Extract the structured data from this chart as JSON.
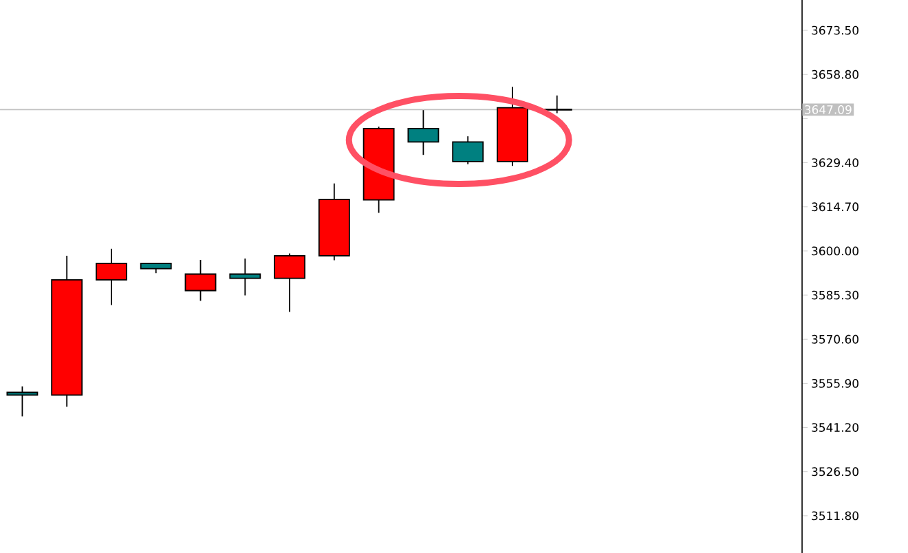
{
  "chart_data": {
    "type": "candlestick",
    "categories": [
      null,
      null,
      null,
      null,
      null,
      null,
      null,
      null,
      null,
      null,
      null,
      null,
      null,
      null,
      null,
      null,
      null,
      null
    ],
    "ohlc": [
      [
        3552.9,
        3554.9,
        3544.9,
        3552.0
      ],
      [
        3552.0,
        3598.4,
        3548.1,
        3590.4
      ],
      [
        3590.4,
        3600.7,
        3582.0,
        3595.9
      ],
      [
        3595.9,
        3595.9,
        3592.6,
        3594.1
      ],
      [
        3586.8,
        3597.0,
        3583.4,
        3592.3
      ],
      [
        3592.3,
        3597.5,
        3585.2,
        3590.9
      ],
      [
        3590.9,
        3599.2,
        3579.7,
        3598.4
      ],
      [
        3598.4,
        3622.5,
        3596.9,
        3617.2
      ],
      [
        3617.0,
        3641.4,
        3612.7,
        3640.8
      ],
      [
        3640.8,
        3646.9,
        3632.0,
        3636.3
      ],
      [
        3636.3,
        3638.2,
        3628.9,
        3629.8
      ],
      [
        3629.8,
        3654.7,
        3628.3,
        3647.7
      ],
      [
        3647.09,
        3651.8,
        3645.9,
        3647.09
      ],
      null,
      null,
      null,
      null,
      null
    ],
    "colors": [
      "#008080",
      "#ff0000",
      "#ff0000",
      "#008080",
      "#ff0000",
      "#008080",
      "#ff0000",
      "#ff0000",
      "#ff0000",
      "#008080",
      "#008080",
      "#ff0000",
      "#000000",
      null,
      null,
      null,
      null,
      null
    ],
    "ylim": [
      3499.4,
      3683.6
    ],
    "yticks": [
      {
        "value": 3511.8,
        "label": "3511.80"
      },
      {
        "value": 3526.5,
        "label": "3526.50"
      },
      {
        "value": 3541.2,
        "label": "3541.20"
      },
      {
        "value": 3555.9,
        "label": "3555.90"
      },
      {
        "value": 3570.6,
        "label": "3570.60"
      },
      {
        "value": 3585.3,
        "label": "3585.30"
      },
      {
        "value": 3600.0,
        "label": "3600.00"
      },
      {
        "value": 3614.7,
        "label": "3614.70"
      },
      {
        "value": 3629.4,
        "label": "3629.40"
      },
      {
        "value": 3644.1,
        "label": null
      },
      {
        "value": 3658.8,
        "label": "3658.80"
      },
      {
        "value": 3673.5,
        "label": "3673.50"
      }
    ],
    "tick_labels": "y",
    "ref_lines": [
      {
        "axis": "y",
        "value": 3647.09,
        "label": "3647.09",
        "color": "#c0c0c0"
      }
    ]
  }
}
